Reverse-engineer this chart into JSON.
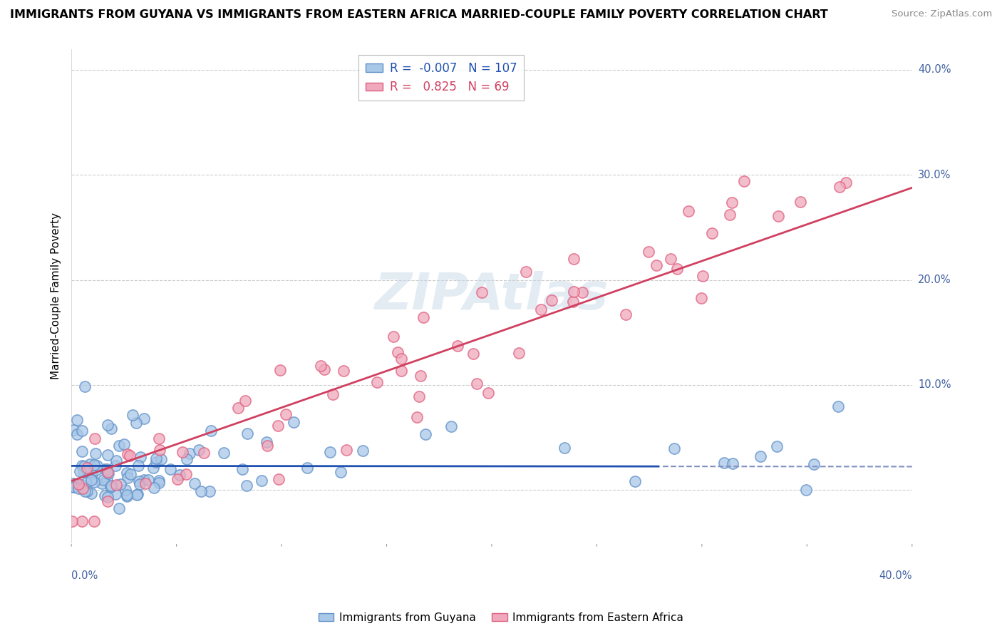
{
  "title": "IMMIGRANTS FROM GUYANA VS IMMIGRANTS FROM EASTERN AFRICA MARRIED-COUPLE FAMILY POVERTY CORRELATION CHART",
  "source": "Source: ZipAtlas.com",
  "ylabel": "Married-Couple Family Poverty",
  "xlim": [
    0.0,
    0.4
  ],
  "ylim": [
    -0.05,
    0.42
  ],
  "blue_R": -0.007,
  "blue_N": 107,
  "pink_R": 0.825,
  "pink_N": 69,
  "blue_color": "#A8C8E8",
  "pink_color": "#F0A8BC",
  "blue_edge_color": "#6090C8",
  "pink_edge_color": "#E06080",
  "blue_line_color": "#2050B0",
  "pink_line_color": "#D04060",
  "blue_line_dash_color": "#8090C0",
  "legend_label_blue": "Immigrants from Guyana",
  "legend_label_pink": "Immigrants from Eastern Africa",
  "background_color": "#FFFFFF",
  "grid_color": "#CCCCCC",
  "title_fontsize": 12,
  "label_color": "#4060A0"
}
